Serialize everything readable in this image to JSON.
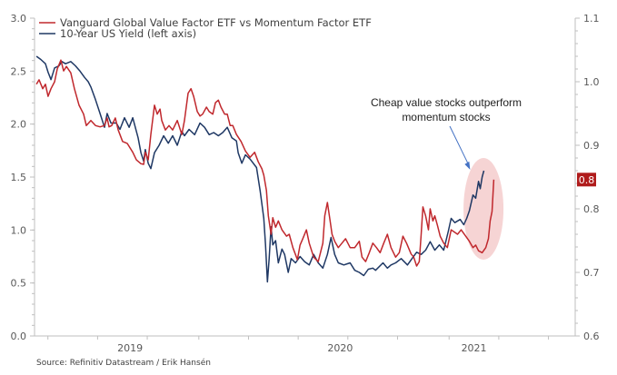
{
  "chart_data": {
    "type": "line",
    "title": "",
    "xlabel": "",
    "ylabel_left": "",
    "ylabel_right": "",
    "x_range": [
      2018.72,
      2021.55
    ],
    "x_tick_labels": [
      {
        "label": "2019",
        "at": 2019.22
      },
      {
        "label": "2020",
        "at": 2020.32
      },
      {
        "label": "2021",
        "at": 2021.02
      }
    ],
    "x_minor_ticks": [
      2018.79,
      2019.05,
      2019.31,
      2019.58,
      2019.84,
      2020.1,
      2020.36,
      2020.62,
      2020.89,
      2021.15,
      2021.41
    ],
    "left_axis": {
      "ylim": [
        0.0,
        3.0
      ],
      "ticks": [
        "0.0",
        "0.5",
        "1.0",
        "1.5",
        "2.0",
        "2.5",
        "3.0"
      ],
      "minor_step": 0.1
    },
    "right_axis": {
      "ylim": [
        0.6,
        1.1
      ],
      "ticks": [
        "0.6",
        "0.7",
        "0.8",
        "0.9",
        "1.0",
        "1.1"
      ],
      "minor_step": 0.02
    },
    "grid": false,
    "legend_position": "top-left",
    "series": [
      {
        "name": "Vanguard Global Value Factor ETF vs Momentum Factor ETF",
        "axis": "right",
        "color": "#c0282d",
        "points": [
          [
            2018.73,
            0.996
          ],
          [
            2018.744,
            1.003
          ],
          [
            2018.763,
            0.989
          ],
          [
            2018.777,
            0.996
          ],
          [
            2018.791,
            0.977
          ],
          [
            2018.806,
            0.989
          ],
          [
            2018.825,
            1.0
          ],
          [
            2018.839,
            1.02
          ],
          [
            2018.858,
            1.034
          ],
          [
            2018.872,
            1.017
          ],
          [
            2018.887,
            1.024
          ],
          [
            2018.91,
            1.014
          ],
          [
            2018.929,
            0.989
          ],
          [
            2018.953,
            0.963
          ],
          [
            2018.977,
            0.949
          ],
          [
            2018.991,
            0.931
          ],
          [
            2019.015,
            0.939
          ],
          [
            2019.039,
            0.931
          ],
          [
            2019.063,
            0.929
          ],
          [
            2019.086,
            0.931
          ],
          [
            2019.1,
            0.943
          ],
          [
            2019.11,
            0.929
          ],
          [
            2019.124,
            0.931
          ],
          [
            2019.143,
            0.943
          ],
          [
            2019.158,
            0.924
          ],
          [
            2019.181,
            0.906
          ],
          [
            2019.205,
            0.903
          ],
          [
            2019.234,
            0.889
          ],
          [
            2019.253,
            0.877
          ],
          [
            2019.277,
            0.871
          ],
          [
            2019.291,
            0.87
          ],
          [
            2019.3,
            0.889
          ],
          [
            2019.315,
            0.877
          ],
          [
            2019.329,
            0.917
          ],
          [
            2019.348,
            0.963
          ],
          [
            2019.362,
            0.949
          ],
          [
            2019.377,
            0.957
          ],
          [
            2019.386,
            0.939
          ],
          [
            2019.405,
            0.924
          ],
          [
            2019.424,
            0.931
          ],
          [
            2019.443,
            0.924
          ],
          [
            2019.467,
            0.939
          ],
          [
            2019.491,
            0.917
          ],
          [
            2019.505,
            0.939
          ],
          [
            2019.524,
            0.982
          ],
          [
            2019.539,
            0.989
          ],
          [
            2019.553,
            0.977
          ],
          [
            2019.572,
            0.953
          ],
          [
            2019.586,
            0.946
          ],
          [
            2019.6,
            0.949
          ],
          [
            2019.62,
            0.96
          ],
          [
            2019.634,
            0.953
          ],
          [
            2019.653,
            0.949
          ],
          [
            2019.667,
            0.967
          ],
          [
            2019.682,
            0.971
          ],
          [
            2019.696,
            0.96
          ],
          [
            2019.715,
            0.949
          ],
          [
            2019.729,
            0.949
          ],
          [
            2019.744,
            0.931
          ],
          [
            2019.758,
            0.931
          ],
          [
            2019.777,
            0.917
          ],
          [
            2019.801,
            0.906
          ],
          [
            2019.824,
            0.891
          ],
          [
            2019.848,
            0.881
          ],
          [
            2019.872,
            0.889
          ],
          [
            2019.891,
            0.874
          ],
          [
            2019.91,
            0.863
          ],
          [
            2019.92,
            0.853
          ],
          [
            2019.934,
            0.829
          ],
          [
            2019.944,
            0.789
          ],
          [
            2019.958,
            0.76
          ],
          [
            2019.967,
            0.786
          ],
          [
            2019.982,
            0.771
          ],
          [
            2019.996,
            0.781
          ],
          [
            2020.015,
            0.767
          ],
          [
            2020.039,
            0.757
          ],
          [
            2020.053,
            0.76
          ],
          [
            2020.072,
            0.739
          ],
          [
            2020.096,
            0.72
          ],
          [
            2020.11,
            0.743
          ],
          [
            2020.124,
            0.753
          ],
          [
            2020.143,
            0.767
          ],
          [
            2020.158,
            0.746
          ],
          [
            2020.181,
            0.724
          ],
          [
            2020.205,
            0.717
          ],
          [
            2020.229,
            0.746
          ],
          [
            2020.239,
            0.789
          ],
          [
            2020.253,
            0.81
          ],
          [
            2020.267,
            0.781
          ],
          [
            2020.277,
            0.76
          ],
          [
            2020.291,
            0.749
          ],
          [
            2020.31,
            0.739
          ],
          [
            2020.329,
            0.746
          ],
          [
            2020.348,
            0.753
          ],
          [
            2020.372,
            0.739
          ],
          [
            2020.396,
            0.739
          ],
          [
            2020.42,
            0.749
          ],
          [
            2020.434,
            0.724
          ],
          [
            2020.453,
            0.717
          ],
          [
            2020.472,
            0.731
          ],
          [
            2020.491,
            0.746
          ],
          [
            2020.51,
            0.739
          ],
          [
            2020.529,
            0.731
          ],
          [
            2020.548,
            0.746
          ],
          [
            2020.567,
            0.76
          ],
          [
            2020.586,
            0.739
          ],
          [
            2020.61,
            0.724
          ],
          [
            2020.629,
            0.731
          ],
          [
            2020.648,
            0.757
          ],
          [
            2020.667,
            0.746
          ],
          [
            2020.691,
            0.729
          ],
          [
            2020.705,
            0.724
          ],
          [
            2020.72,
            0.71
          ],
          [
            2020.734,
            0.717
          ],
          [
            2020.744,
            0.76
          ],
          [
            2020.753,
            0.803
          ],
          [
            2020.767,
            0.789
          ],
          [
            2020.782,
            0.767
          ],
          [
            2020.791,
            0.8
          ],
          [
            2020.805,
            0.781
          ],
          [
            2020.815,
            0.789
          ],
          [
            2020.829,
            0.774
          ],
          [
            2020.843,
            0.757
          ],
          [
            2020.862,
            0.746
          ],
          [
            2020.881,
            0.739
          ],
          [
            2020.901,
            0.767
          ],
          [
            2020.92,
            0.763
          ],
          [
            2020.934,
            0.76
          ],
          [
            2020.953,
            0.767
          ],
          [
            2020.977,
            0.757
          ],
          [
            2020.996,
            0.749
          ],
          [
            2021.015,
            0.739
          ],
          [
            2021.029,
            0.743
          ],
          [
            2021.044,
            0.734
          ],
          [
            2021.063,
            0.731
          ],
          [
            2021.082,
            0.739
          ],
          [
            2021.096,
            0.753
          ],
          [
            2021.105,
            0.781
          ],
          [
            2021.115,
            0.796
          ],
          [
            2021.124,
            0.846
          ]
        ],
        "last_value_badge": "0.8"
      },
      {
        "name": "10-Year US Yield (left axis)",
        "axis": "left",
        "color": "#1f3864",
        "points": [
          [
            2018.73,
            2.64
          ],
          [
            2018.753,
            2.61
          ],
          [
            2018.777,
            2.57
          ],
          [
            2018.791,
            2.49
          ],
          [
            2018.806,
            2.42
          ],
          [
            2018.825,
            2.53
          ],
          [
            2018.848,
            2.55
          ],
          [
            2018.863,
            2.59
          ],
          [
            2018.882,
            2.57
          ],
          [
            2018.91,
            2.59
          ],
          [
            2018.934,
            2.55
          ],
          [
            2018.958,
            2.5
          ],
          [
            2018.982,
            2.44
          ],
          [
            2019.001,
            2.4
          ],
          [
            2019.015,
            2.35
          ],
          [
            2019.039,
            2.23
          ],
          [
            2019.063,
            2.1
          ],
          [
            2019.086,
            1.97
          ],
          [
            2019.1,
            2.1
          ],
          [
            2019.12,
            2.01
          ],
          [
            2019.148,
            2.01
          ],
          [
            2019.167,
            1.95
          ],
          [
            2019.191,
            2.06
          ],
          [
            2019.215,
            1.97
          ],
          [
            2019.234,
            2.06
          ],
          [
            2019.262,
            1.87
          ],
          [
            2019.277,
            1.73
          ],
          [
            2019.291,
            1.65
          ],
          [
            2019.3,
            1.76
          ],
          [
            2019.315,
            1.63
          ],
          [
            2019.329,
            1.58
          ],
          [
            2019.348,
            1.73
          ],
          [
            2019.372,
            1.8
          ],
          [
            2019.396,
            1.89
          ],
          [
            2019.42,
            1.82
          ],
          [
            2019.443,
            1.89
          ],
          [
            2019.467,
            1.8
          ],
          [
            2019.491,
            1.93
          ],
          [
            2019.505,
            1.89
          ],
          [
            2019.529,
            1.95
          ],
          [
            2019.558,
            1.9
          ],
          [
            2019.586,
            2.01
          ],
          [
            2019.61,
            1.97
          ],
          [
            2019.634,
            1.9
          ],
          [
            2019.658,
            1.92
          ],
          [
            2019.682,
            1.89
          ],
          [
            2019.705,
            1.92
          ],
          [
            2019.729,
            1.97
          ],
          [
            2019.753,
            1.87
          ],
          [
            2019.777,
            1.84
          ],
          [
            2019.786,
            1.73
          ],
          [
            2019.805,
            1.63
          ],
          [
            2019.824,
            1.71
          ],
          [
            2019.848,
            1.67
          ],
          [
            2019.882,
            1.59
          ],
          [
            2019.901,
            1.37
          ],
          [
            2019.92,
            1.11
          ],
          [
            2019.929,
            0.86
          ],
          [
            2019.939,
            0.51
          ],
          [
            2019.948,
            0.73
          ],
          [
            2019.958,
            1.03
          ],
          [
            2019.967,
            0.86
          ],
          [
            2019.982,
            0.9
          ],
          [
            2019.996,
            0.69
          ],
          [
            2020.015,
            0.82
          ],
          [
            2020.029,
            0.77
          ],
          [
            2020.048,
            0.6
          ],
          [
            2020.063,
            0.73
          ],
          [
            2020.086,
            0.69
          ],
          [
            2020.11,
            0.75
          ],
          [
            2020.134,
            0.7
          ],
          [
            2020.158,
            0.67
          ],
          [
            2020.181,
            0.77
          ],
          [
            2020.205,
            0.69
          ],
          [
            2020.229,
            0.64
          ],
          [
            2020.253,
            0.77
          ],
          [
            2020.272,
            0.93
          ],
          [
            2020.291,
            0.77
          ],
          [
            2020.31,
            0.69
          ],
          [
            2020.339,
            0.67
          ],
          [
            2020.372,
            0.69
          ],
          [
            2020.396,
            0.62
          ],
          [
            2020.42,
            0.6
          ],
          [
            2020.443,
            0.57
          ],
          [
            2020.467,
            0.63
          ],
          [
            2020.491,
            0.64
          ],
          [
            2020.505,
            0.62
          ],
          [
            2020.544,
            0.69
          ],
          [
            2020.567,
            0.64
          ],
          [
            2020.586,
            0.67
          ],
          [
            2020.61,
            0.69
          ],
          [
            2020.639,
            0.73
          ],
          [
            2020.672,
            0.67
          ],
          [
            2020.696,
            0.73
          ],
          [
            2020.72,
            0.79
          ],
          [
            2020.744,
            0.77
          ],
          [
            2020.767,
            0.81
          ],
          [
            2020.791,
            0.89
          ],
          [
            2020.815,
            0.81
          ],
          [
            2020.839,
            0.86
          ],
          [
            2020.862,
            0.81
          ],
          [
            2020.886,
            0.99
          ],
          [
            2020.901,
            1.11
          ],
          [
            2020.92,
            1.07
          ],
          [
            2020.948,
            1.1
          ],
          [
            2020.967,
            1.05
          ],
          [
            2020.982,
            1.11
          ],
          [
            2020.996,
            1.18
          ],
          [
            2021.015,
            1.33
          ],
          [
            2021.029,
            1.3
          ],
          [
            2021.044,
            1.46
          ],
          [
            2021.053,
            1.39
          ],
          [
            2021.063,
            1.5
          ],
          [
            2021.072,
            1.56
          ]
        ]
      }
    ],
    "annotations": [
      {
        "text_line1": "Cheap value stocks outperform",
        "text_line2": "momentum stocks",
        "points_to": [
          2021.0,
          1.57
        ],
        "highlight_center": [
          2021.07,
          1.2
        ],
        "highlight_color": "#f4cccc"
      }
    ],
    "source": "Source: Refinitiv Datastream / Erik Hansén"
  }
}
